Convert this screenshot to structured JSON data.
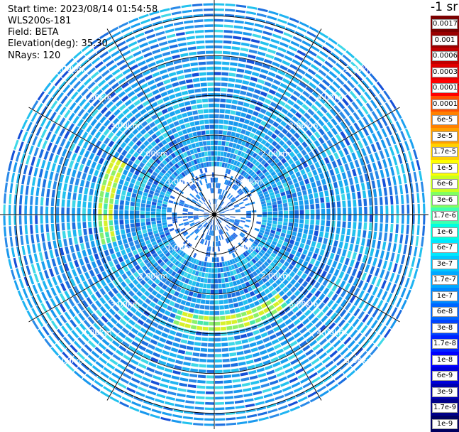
{
  "header": {
    "start_time": "Start time: 2023/08/14 01:54:58",
    "instrument": "WLS200s-181",
    "field": "Field: BETA",
    "elevation": "Elevation(deg): 35.30",
    "nrays": "NRays: 120"
  },
  "colorbar": {
    "units": "-1 sr",
    "labels": [
      "0.0017",
      "0.001",
      "0.0006",
      "0.0003",
      "0.00017",
      "0.0001",
      "6e-5",
      "3e-5",
      "1.7e-5",
      "1e-5",
      "6e-6",
      "3e-6",
      "1.7e-6",
      "1e-6",
      "6e-7",
      "3e-7",
      "1.7e-7",
      "1e-7",
      "6e-8",
      "3e-8",
      "1.7e-8",
      "1e-8",
      "6e-9",
      "3e-9",
      "1.7e-9",
      "1e-9"
    ],
    "colors": [
      "#7a0000",
      "#9a0000",
      "#c00000",
      "#e00000",
      "#ff0000",
      "#ff5000",
      "#ff8000",
      "#ffa000",
      "#ffd000",
      "#ffff00",
      "#c8ff20",
      "#80ff60",
      "#40ffb0",
      "#00ffe0",
      "#00e8ff",
      "#00c8ff",
      "#00a8ff",
      "#0088ff",
      "#0066ff",
      "#0044ff",
      "#0022ff",
      "#0000ff",
      "#0000d8",
      "#0000b0",
      "#000088",
      "#000060"
    ]
  },
  "chart_data": {
    "type": "heatmap",
    "projection": "polar-ppi",
    "field": "BETA",
    "units": "-1 sr",
    "nrays": 120,
    "elevation_deg": 35.3,
    "range_max_km": 5.4,
    "range_rings_km": [
      1,
      2,
      3,
      4,
      5
    ],
    "ring_labels": [
      "1.00km",
      "2.00km",
      "3.00km",
      "4.00km",
      "5.00km"
    ],
    "spoke_interval_deg": 30,
    "background_level": "1e-7 to 1e-6",
    "features": [
      {
        "name": "west arc",
        "range_km": [
          2.6,
          3.0
        ],
        "azimuth_deg": [
          255,
          300
        ],
        "level": "1e-5"
      },
      {
        "name": "south arc",
        "range_km": [
          2.6,
          3.0
        ],
        "azimuth_deg": [
          140,
          200
        ],
        "level": "6e-6"
      },
      {
        "name": "inner echo",
        "range_km": [
          0.2,
          1.0
        ],
        "azimuth_deg": [
          0,
          360
        ],
        "level": "1e-7"
      }
    ]
  }
}
